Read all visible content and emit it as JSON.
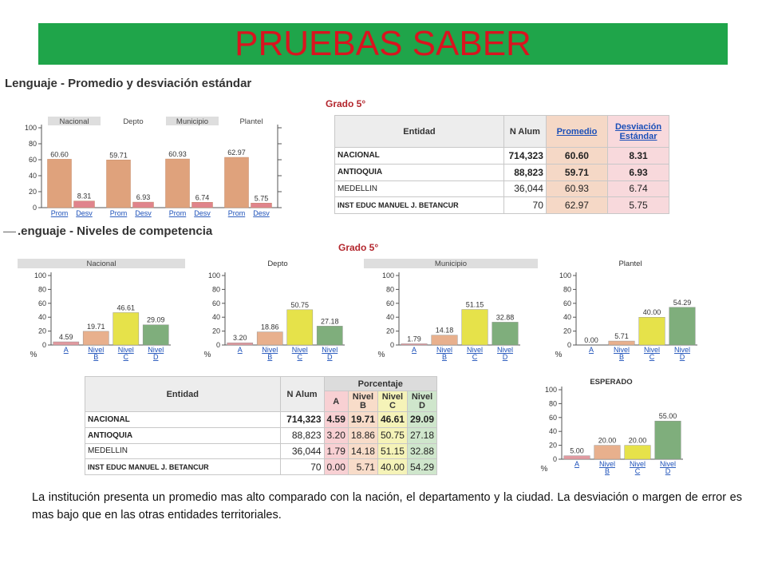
{
  "banner": {
    "title": "PRUEBAS SABER"
  },
  "section1": {
    "title": "Lenguaje - Promedio y desviación estándar",
    "grado": "Grado 5°"
  },
  "section2": {
    "title": ".enguaje - Niveles de competencia",
    "grado": "Grado 5°"
  },
  "table1": {
    "headers": {
      "entidad": "Entidad",
      "n_alum": "N Alum",
      "promedio": "Promedio",
      "desviacion": "Desviación Estándar"
    },
    "rows": [
      {
        "entidad": "NACIONAL",
        "n": "714,323",
        "prom": "60.60",
        "desv": "8.31"
      },
      {
        "entidad": "ANTIOQUIA",
        "n": "88,823",
        "prom": "59.71",
        "desv": "6.93"
      },
      {
        "entidad": "MEDELLIN",
        "n": "36,044",
        "prom": "60.93",
        "desv": "6.74"
      },
      {
        "entidad": "INST EDUC MANUEL J. BETANCUR",
        "n": "70",
        "prom": "62.97",
        "desv": "5.75"
      }
    ]
  },
  "table2": {
    "headers": {
      "entidad": "Entidad",
      "n_alum": "N Alum",
      "porcentaje": "Porcentaje",
      "a": "A",
      "b": "Nivel B",
      "c": "Nivel C",
      "d": "Nivel D"
    },
    "rows": [
      {
        "entidad": "NACIONAL",
        "n": "714,323",
        "a": "4.59",
        "b": "19.71",
        "c": "46.61",
        "d": "29.09"
      },
      {
        "entidad": "ANTIOQUIA",
        "n": "88,823",
        "a": "3.20",
        "b": "18.86",
        "c": "50.75",
        "d": "27.18"
      },
      {
        "entidad": "MEDELLIN",
        "n": "36,044",
        "a": "1.79",
        "b": "14.18",
        "c": "51.15",
        "d": "32.88"
      },
      {
        "entidad": "INST EDUC MANUEL J. BETANCUR",
        "n": "70",
        "a": "0.00",
        "b": "5.71",
        "c": "40.00",
        "d": "54.29"
      }
    ]
  },
  "bottom_text": "La institución presenta un promedio mas alto comparado con la nación, el departamento y la ciudad. La desviación o margen de error es mas bajo que en las otras entidades territoriales.",
  "chart_data": [
    {
      "type": "bar",
      "groups": [
        "Nacional",
        "Depto",
        "Municipio",
        "Plantel"
      ],
      "categories": [
        "Prom",
        "Desv",
        "Prom",
        "Desv",
        "Prom",
        "Desv",
        "Prom",
        "Desv"
      ],
      "values": [
        60.6,
        8.31,
        59.71,
        6.93,
        60.93,
        6.74,
        62.97,
        5.75
      ],
      "labels": [
        "60.60",
        "8.31",
        "59.71",
        "6.93",
        "60.93",
        "6.74",
        "62.97",
        "5.75"
      ],
      "yticks": [
        "100",
        "80",
        "60",
        "40",
        "20",
        "0"
      ],
      "ylim": [
        0,
        100
      ],
      "colors": {
        "prom": "#dfa27c",
        "desv": "#e0848c"
      }
    },
    {
      "type": "bar",
      "title": "Nacional",
      "ylabel": "%",
      "categories": [
        "A",
        "Nivel B",
        "Nivel C",
        "Nivel D"
      ],
      "values": [
        4.59,
        19.71,
        46.61,
        29.09
      ],
      "labels": [
        "4.59",
        "19.71",
        "46.61",
        "29.09"
      ],
      "yticks": [
        "100",
        "80",
        "60",
        "40",
        "20",
        "0"
      ],
      "ylim": [
        0,
        100
      ]
    },
    {
      "type": "bar",
      "title": "Depto",
      "ylabel": "%",
      "categories": [
        "A",
        "Nivel B",
        "Nivel C",
        "Nivel D"
      ],
      "values": [
        3.2,
        18.86,
        50.75,
        27.18
      ],
      "labels": [
        "3.20",
        "18.86",
        "50.75",
        "27.18"
      ],
      "yticks": [
        "100",
        "80",
        "60",
        "40",
        "20",
        "0"
      ],
      "ylim": [
        0,
        100
      ]
    },
    {
      "type": "bar",
      "title": "Municipio",
      "ylabel": "%",
      "categories": [
        "A",
        "Nivel B",
        "Nivel C",
        "Nivel D"
      ],
      "values": [
        1.79,
        14.18,
        51.15,
        32.88
      ],
      "labels": [
        "1.79",
        "14.18",
        "51.15",
        "32.88"
      ],
      "yticks": [
        "100",
        "80",
        "60",
        "40",
        "20",
        "0"
      ],
      "ylim": [
        0,
        100
      ]
    },
    {
      "type": "bar",
      "title": "Plantel",
      "ylabel": "%",
      "categories": [
        "A",
        "Nivel B",
        "Nivel C",
        "Nivel D"
      ],
      "values": [
        0.0,
        5.71,
        40.0,
        54.29
      ],
      "labels": [
        "0.00",
        "5.71",
        "40.00",
        "54.29"
      ],
      "yticks": [
        "100",
        "80",
        "60",
        "40",
        "20",
        "0"
      ],
      "ylim": [
        0,
        100
      ]
    },
    {
      "type": "bar",
      "title": "ESPERADO",
      "ylabel": "%",
      "categories": [
        "A",
        "Nivel B",
        "Nivel C",
        "Nivel D"
      ],
      "values": [
        5.0,
        20.0,
        20.0,
        55.0
      ],
      "labels": [
        "5.00",
        "20.00",
        "20.00",
        "55.00"
      ],
      "yticks": [
        "100",
        "80",
        "60",
        "40",
        "20",
        "0"
      ],
      "ylim": [
        0,
        100
      ]
    }
  ],
  "level_colors": {
    "a": "#e19aa0",
    "b": "#e8b08d",
    "c": "#e6e24a",
    "d": "#7fae7c"
  },
  "table_colors": {
    "a": "#f8d0d3",
    "b": "#f8dcc9",
    "c": "#f5f3b8",
    "d": "#cfe6cc",
    "prom": "#f5d8c6",
    "desv": "#f8d9dc"
  }
}
